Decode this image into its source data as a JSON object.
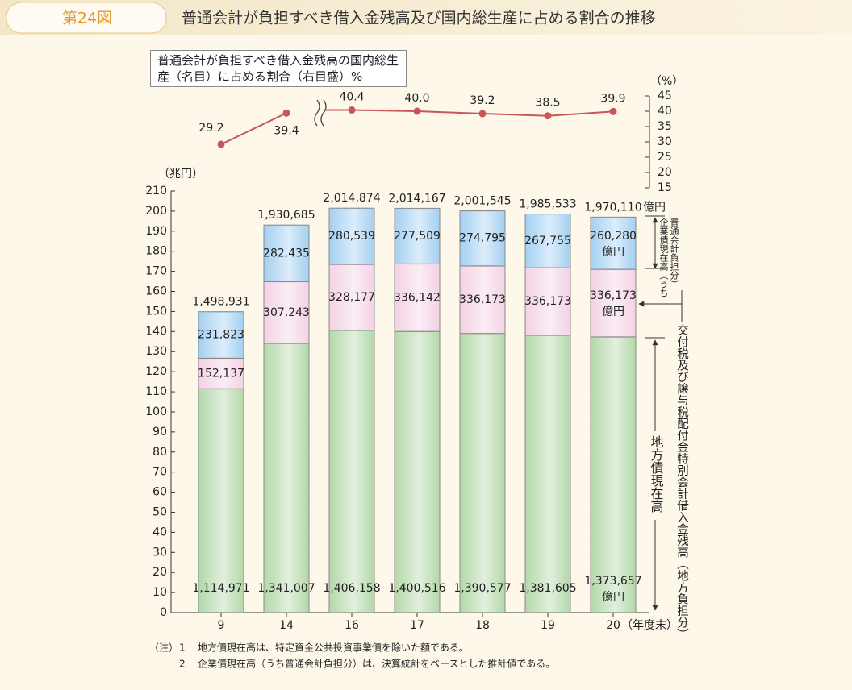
{
  "header": {
    "figure_no": "第24図",
    "title": "普通会計が負担すべき借入金残高及び国内総生産に占める割合の推移"
  },
  "chart_data": {
    "type": "bar",
    "stacked": true,
    "categories": [
      "9",
      "14",
      "16",
      "17",
      "18",
      "19",
      "20"
    ],
    "x_unit_label": "（年度末）",
    "y_label": "（兆円）",
    "y2_label": "（%）",
    "unit_label": "億円",
    "series": [
      {
        "name": "地方債現在高",
        "color": "#b5d9ab",
        "values": [
          111.4971,
          134.1007,
          140.6158,
          140.0516,
          139.0577,
          138.1605,
          137.3657
        ],
        "value_labels": [
          "1,114,971",
          "1,341,007",
          "1,406,158",
          "1,400,516",
          "1,390,577",
          "1,381,605",
          "1,373,657"
        ]
      },
      {
        "name": "交付税及び譲与税配付金特別会計借入金残高（地方負担分）",
        "color": "#f4d3e5",
        "values": [
          15.2137,
          30.7243,
          32.8177,
          33.6142,
          33.6173,
          33.6173,
          33.6173
        ],
        "value_labels": [
          "152,137",
          "307,243",
          "328,177",
          "336,142",
          "336,173",
          "336,173",
          "336,173"
        ]
      },
      {
        "name": "企業債現在高（うち普通会計負担分）",
        "color": "#a6d1f2",
        "values": [
          23.1823,
          28.2435,
          28.0539,
          27.7509,
          27.4795,
          26.7755,
          26.028
        ],
        "value_labels": [
          "231,823",
          "282,435",
          "280,539",
          "277,509",
          "274,795",
          "267,755",
          "260,280"
        ]
      },
      {
        "name": "普通会計が負担すべき借入金残高の国内総生産（名目）に占める割合（右目盛）%",
        "type": "line",
        "axis": "y2",
        "color": "#c9575a",
        "values": [
          29.2,
          39.4,
          40.4,
          40,
          39.2,
          38.5,
          39.9
        ],
        "value_labels": [
          "29.2",
          "39.4",
          "40.4",
          "40.0",
          "39.2",
          "38.5",
          "39.9"
        ]
      }
    ],
    "totals": {
      "values": [
        149.8931,
        193.0685,
        201.4874,
        201.4167,
        200.1545,
        198.5533,
        197.011
      ],
      "value_labels": [
        "1,498,931",
        "1,930,685",
        "2,014,874",
        "2,014,167",
        "2,001,545",
        "1,985,533",
        "1,970,110"
      ]
    },
    "ylim": [
      0,
      210
    ],
    "yticks": [
      0,
      10,
      20,
      30,
      40,
      50,
      60,
      70,
      80,
      90,
      100,
      110,
      120,
      130,
      140,
      150,
      160,
      170,
      180,
      190,
      200,
      210
    ],
    "y2lim": [
      15,
      45
    ],
    "y2ticks": [
      15,
      20,
      25,
      30,
      35,
      40,
      45
    ]
  },
  "notes_label": "（注）",
  "notes": [
    {
      "number": "1",
      "text": "地方債現在高は、特定資金公共投資事業債を除いた額である。"
    },
    {
      "number": "2",
      "text": "企業債現在高（うち普通会計負担分）は、決算統計をベースとした推計値である。"
    }
  ]
}
